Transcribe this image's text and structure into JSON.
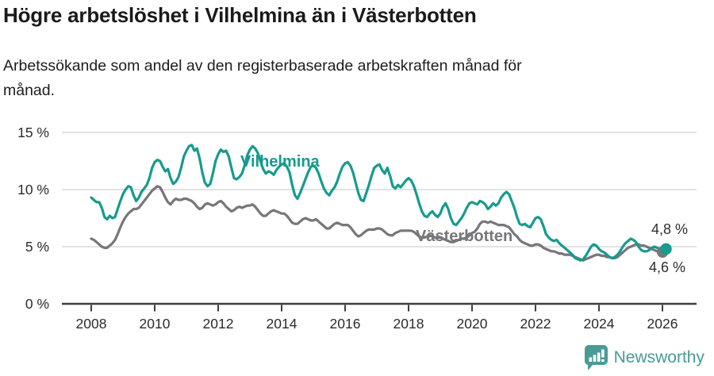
{
  "header": {
    "title": "Högre arbetslöshet i Vilhelmina än i Västerbotten",
    "subtitle": "Arbetssökande som andel av den registerbaserade arbetskraften månad för månad.",
    "subtitle_lines": [
      "Arbetssökande som andel av den registerbaserade arbetskraften månad för",
      "månad."
    ]
  },
  "chart_data": {
    "type": "line",
    "unit": "%",
    "x_start": {
      "year": 2008,
      "month": 1
    },
    "x_interval": "monthly",
    "x_ticks": [
      2008,
      2010,
      2012,
      2014,
      2016,
      2018,
      2020,
      2022,
      2024,
      2026
    ],
    "y_ticks": [
      {
        "value": 0,
        "label": "0 %"
      },
      {
        "value": 5,
        "label": "5 %"
      },
      {
        "value": 10,
        "label": "10 %"
      },
      {
        "value": 15,
        "label": "15 %"
      }
    ],
    "ylim": [
      0,
      15
    ],
    "grid": "horizontal",
    "legend_position": "inline-labels",
    "series": [
      {
        "name": "Vilhelmina",
        "color": "#169b8d",
        "end_value": 4.8,
        "end_label": "4,8 %",
        "values": [
          9.3,
          9.1,
          8.9,
          8.9,
          8.4,
          7.6,
          7.4,
          7.7,
          7.5,
          7.6,
          8.3,
          9.0,
          9.6,
          10.0,
          10.3,
          10.2,
          9.5,
          9.0,
          9.3,
          9.8,
          10.1,
          10.4,
          11.0,
          11.9,
          12.4,
          12.6,
          12.5,
          12.0,
          11.6,
          11.8,
          11.0,
          10.5,
          10.7,
          11.1,
          11.9,
          12.9,
          13.4,
          13.8,
          13.9,
          13.4,
          13.6,
          12.7,
          11.5,
          10.6,
          10.3,
          10.5,
          11.4,
          12.5,
          13.1,
          13.5,
          13.3,
          13.4,
          12.9,
          11.9,
          11.0,
          10.9,
          11.1,
          11.4,
          12.1,
          13.0,
          13.5,
          13.8,
          13.6,
          13.2,
          12.5,
          11.8,
          11.4,
          11.6,
          11.5,
          11.3,
          11.7,
          12.0,
          12.2,
          12.3,
          12.0,
          11.5,
          10.4,
          9.5,
          9.2,
          9.7,
          10.3,
          10.9,
          11.5,
          12.0,
          12.1,
          11.9,
          11.4,
          10.7,
          10.1,
          9.7,
          9.5,
          9.9,
          10.2,
          10.7,
          11.4,
          12.0,
          12.3,
          12.4,
          12.1,
          11.5,
          10.6,
          9.7,
          9.1,
          9.0,
          9.7,
          10.4,
          11.2,
          11.9,
          12.1,
          12.2,
          11.7,
          11.4,
          11.9,
          11.2,
          10.3,
          10.1,
          10.4,
          10.2,
          10.5,
          10.8,
          11.0,
          10.8,
          10.3,
          9.6,
          8.8,
          8.1,
          7.7,
          7.6,
          7.9,
          8.1,
          7.8,
          7.6,
          7.9,
          8.5,
          8.8,
          8.3,
          7.5,
          7.0,
          6.9,
          7.2,
          7.5,
          7.9,
          8.4,
          8.8,
          8.9,
          8.8,
          8.7,
          9.0,
          8.9,
          8.7,
          8.3,
          8.5,
          8.8,
          8.6,
          8.8,
          9.3,
          9.6,
          9.8,
          9.6,
          9.0,
          8.4,
          7.6,
          7.0,
          6.9,
          7.0,
          6.8,
          6.7,
          7.1,
          7.5,
          7.6,
          7.4,
          6.8,
          6.1,
          5.8,
          5.6,
          5.5,
          5.6,
          5.3,
          5.1,
          4.9,
          4.7,
          4.5,
          4.3,
          4.0,
          3.9,
          3.8,
          3.9,
          4.2,
          4.6,
          5.0,
          5.2,
          5.1,
          4.8,
          4.6,
          4.5,
          4.3,
          4.1,
          4.0,
          4.1,
          4.3,
          4.6,
          5.0,
          5.3,
          5.5,
          5.7,
          5.6,
          5.4,
          5.0,
          4.7,
          4.6,
          4.6,
          4.7,
          4.9,
          5.0,
          4.9,
          4.8,
          4.8,
          4.8
        ]
      },
      {
        "name": "Västerbotten",
        "color": "#77777b",
        "end_value": 4.6,
        "end_label": "4,6 %",
        "values": [
          5.7,
          5.6,
          5.4,
          5.2,
          5.0,
          4.9,
          4.9,
          5.1,
          5.3,
          5.6,
          6.1,
          6.7,
          7.2,
          7.6,
          7.9,
          8.1,
          8.3,
          8.3,
          8.4,
          8.7,
          9.0,
          9.3,
          9.6,
          9.9,
          10.1,
          10.3,
          10.2,
          9.8,
          9.3,
          8.9,
          8.7,
          9.0,
          9.2,
          9.1,
          9.1,
          9.2,
          9.2,
          9.1,
          9.0,
          8.8,
          8.5,
          8.3,
          8.4,
          8.7,
          8.8,
          8.7,
          8.6,
          8.7,
          8.9,
          9.0,
          8.8,
          8.5,
          8.3,
          8.1,
          8.2,
          8.4,
          8.5,
          8.4,
          8.5,
          8.6,
          8.6,
          8.7,
          8.5,
          8.2,
          7.9,
          7.7,
          7.7,
          7.9,
          8.1,
          8.2,
          8.1,
          8.0,
          7.9,
          7.9,
          7.7,
          7.4,
          7.1,
          7.0,
          7.0,
          7.2,
          7.4,
          7.5,
          7.4,
          7.3,
          7.3,
          7.4,
          7.2,
          7.0,
          6.8,
          6.6,
          6.6,
          6.8,
          7.0,
          7.1,
          7.0,
          6.9,
          6.9,
          6.9,
          6.7,
          6.4,
          6.1,
          5.9,
          6.0,
          6.2,
          6.4,
          6.5,
          6.5,
          6.5,
          6.6,
          6.6,
          6.5,
          6.3,
          6.1,
          6.0,
          6.0,
          6.2,
          6.3,
          6.4,
          6.4,
          6.4,
          6.4,
          6.4,
          6.3,
          6.1,
          5.9,
          5.8,
          5.8,
          5.9,
          6.0,
          5.9,
          5.8,
          5.8,
          5.8,
          5.7,
          5.6,
          5.5,
          5.4,
          5.4,
          5.5,
          5.6,
          5.7,
          5.7,
          5.8,
          6.0,
          6.2,
          6.3,
          6.6,
          7.0,
          7.2,
          7.2,
          7.1,
          7.2,
          7.1,
          7.0,
          6.9,
          6.9,
          6.9,
          6.8,
          6.7,
          6.4,
          6.1,
          5.9,
          5.6,
          5.4,
          5.3,
          5.2,
          5.1,
          5.1,
          5.2,
          5.2,
          5.1,
          4.9,
          4.8,
          4.7,
          4.6,
          4.6,
          4.5,
          4.4,
          4.4,
          4.3,
          4.3,
          4.3,
          4.2,
          4.1,
          4.0,
          3.9,
          3.8,
          3.9,
          4.0,
          4.1,
          4.2,
          4.3,
          4.3,
          4.2,
          4.2,
          4.1,
          4.1,
          4.0,
          4.0,
          4.1,
          4.3,
          4.5,
          4.7,
          4.9,
          5.0,
          5.1,
          5.2,
          5.2,
          5.1,
          5.1,
          5.0,
          4.9,
          4.8,
          4.7,
          4.6,
          4.6,
          4.6,
          4.6
        ]
      }
    ],
    "colors": {
      "grid": "#dadada",
      "axis": "#3e3e3e",
      "tick_text": "#2b2b2b"
    }
  },
  "footer": {
    "brand": "Newsworthy"
  }
}
